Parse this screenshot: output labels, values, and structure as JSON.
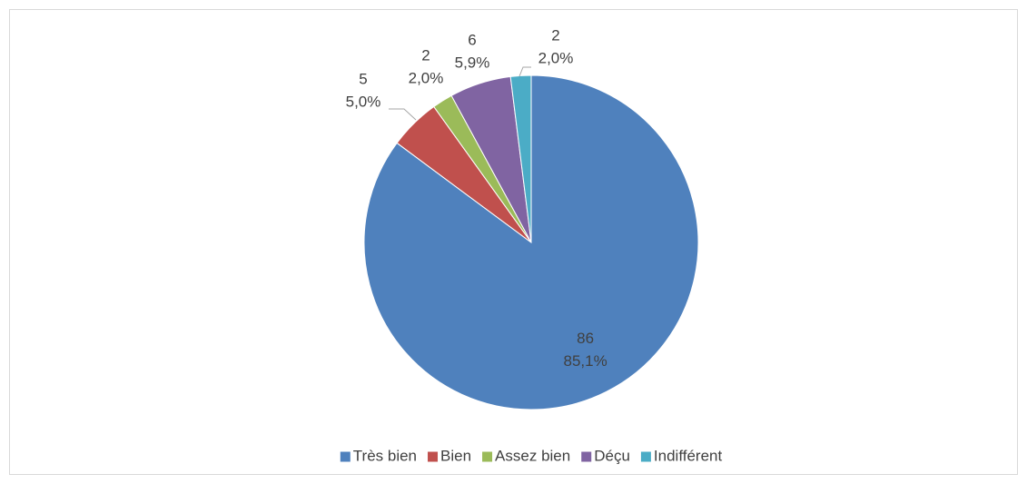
{
  "chart_data": {
    "type": "pie",
    "categories": [
      "Très bien",
      "Bien",
      "Assez bien",
      "Déçu",
      "Indifférent"
    ],
    "values": [
      86,
      5,
      2,
      6,
      2
    ],
    "percentages": [
      85.1,
      5.0,
      2.0,
      5.9,
      2.0
    ],
    "percentage_labels": [
      "85,1%",
      "5,0%",
      "2,0%",
      "5,9%",
      "2,0%"
    ],
    "colors": [
      "#4f81bd",
      "#c0504d",
      "#9bbb59",
      "#8064a2",
      "#4bacc6"
    ],
    "legend": "bottom"
  }
}
